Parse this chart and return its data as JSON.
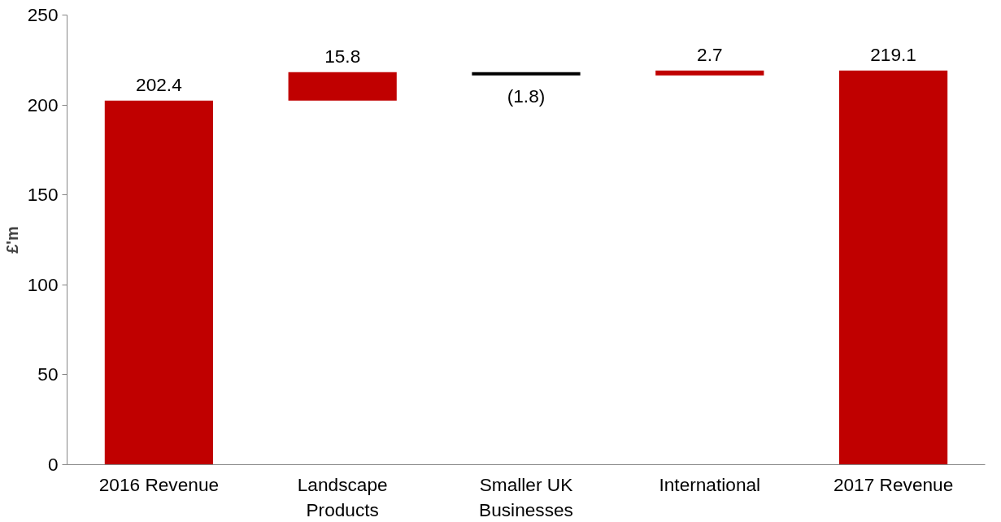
{
  "chart_data": {
    "type": "bar",
    "ylabel": "£'m",
    "categories": [
      "2016 Revenue",
      "Landscape Products",
      "Smaller UK Businesses",
      "International",
      "2017 Revenue"
    ],
    "values": [
      202.4,
      15.8,
      -1.8,
      2.7,
      219.1
    ],
    "base": [
      0,
      202.4,
      218.2,
      216.4,
      0
    ],
    "colors": [
      "#c00000",
      "#c00000",
      "#000000",
      "#c00000",
      "#c00000"
    ],
    "value_labels": [
      "202.4",
      "15.8",
      "(1.8)",
      "2.7",
      "219.1"
    ],
    "ylim": [
      0,
      250
    ],
    "yticks": [
      0,
      50,
      100,
      150,
      200,
      250
    ],
    "grid": false
  }
}
